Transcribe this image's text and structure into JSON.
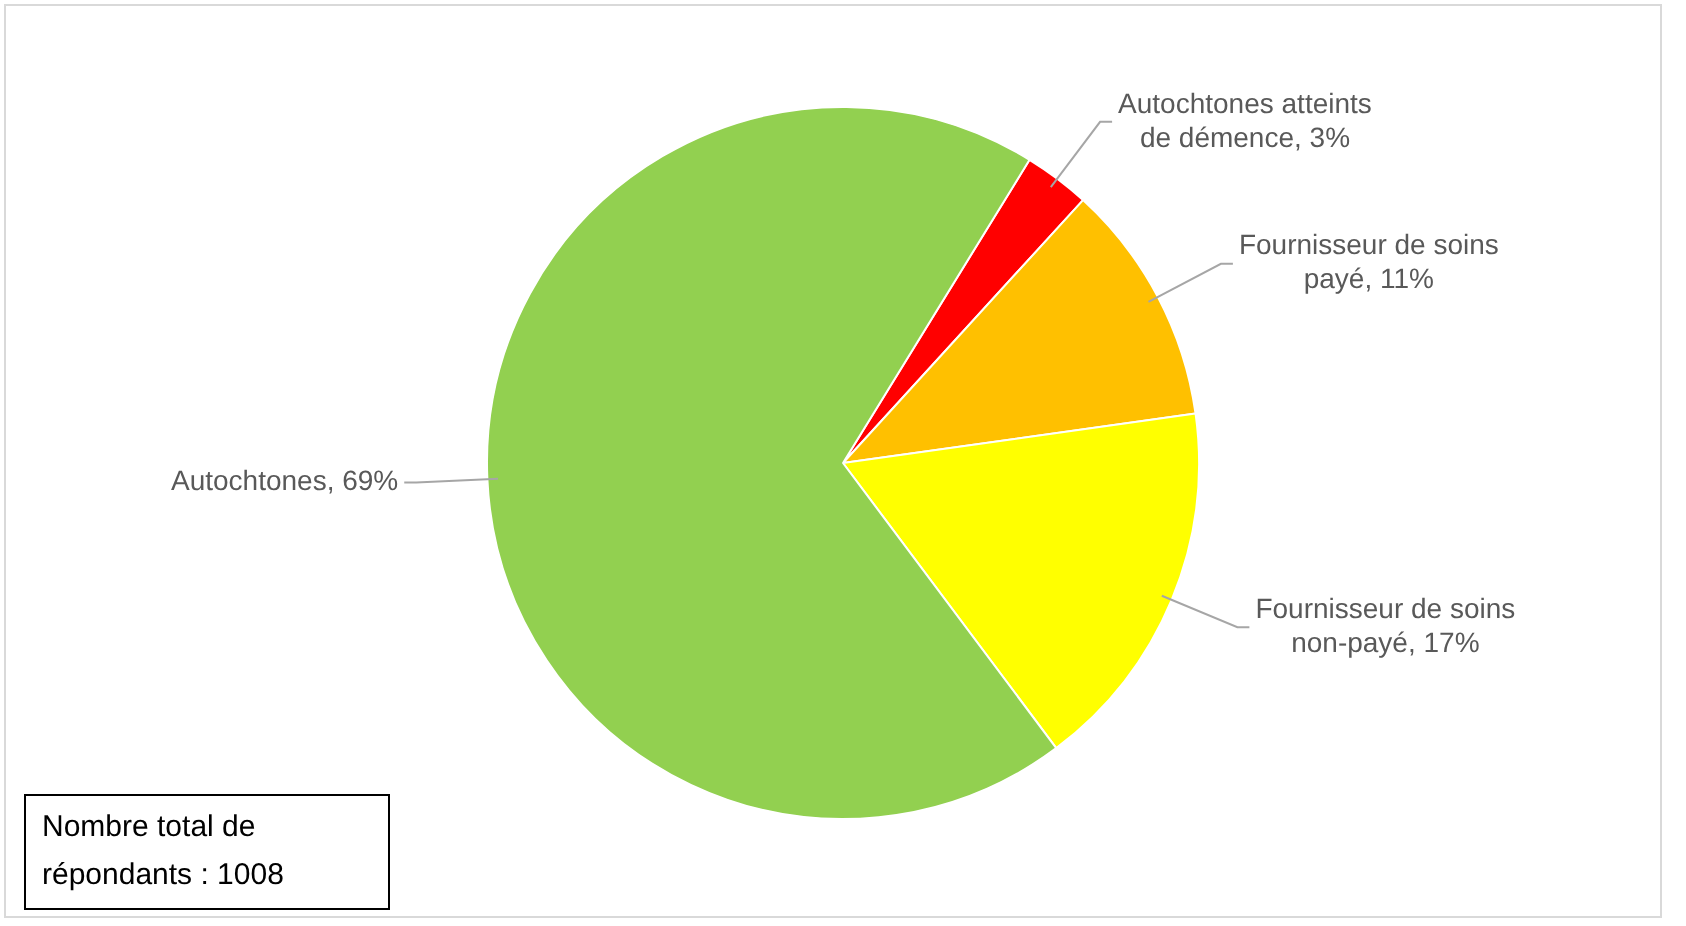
{
  "chart_data": {
    "type": "pie",
    "categories": [
      "Autochtones atteints de démence",
      "Fournisseur de soins payé",
      "Fournisseur de soins non-payé",
      "Autochtones"
    ],
    "values": [
      3,
      11,
      17,
      69
    ],
    "colors": [
      "#ff0000",
      "#ffc000",
      "#ffff00",
      "#92d050"
    ],
    "value_labels": [
      "3%",
      "11%",
      "17%",
      "69%"
    ],
    "annotations": [
      "Nombre total de répondants  : 1008"
    ],
    "legend": false
  }
}
